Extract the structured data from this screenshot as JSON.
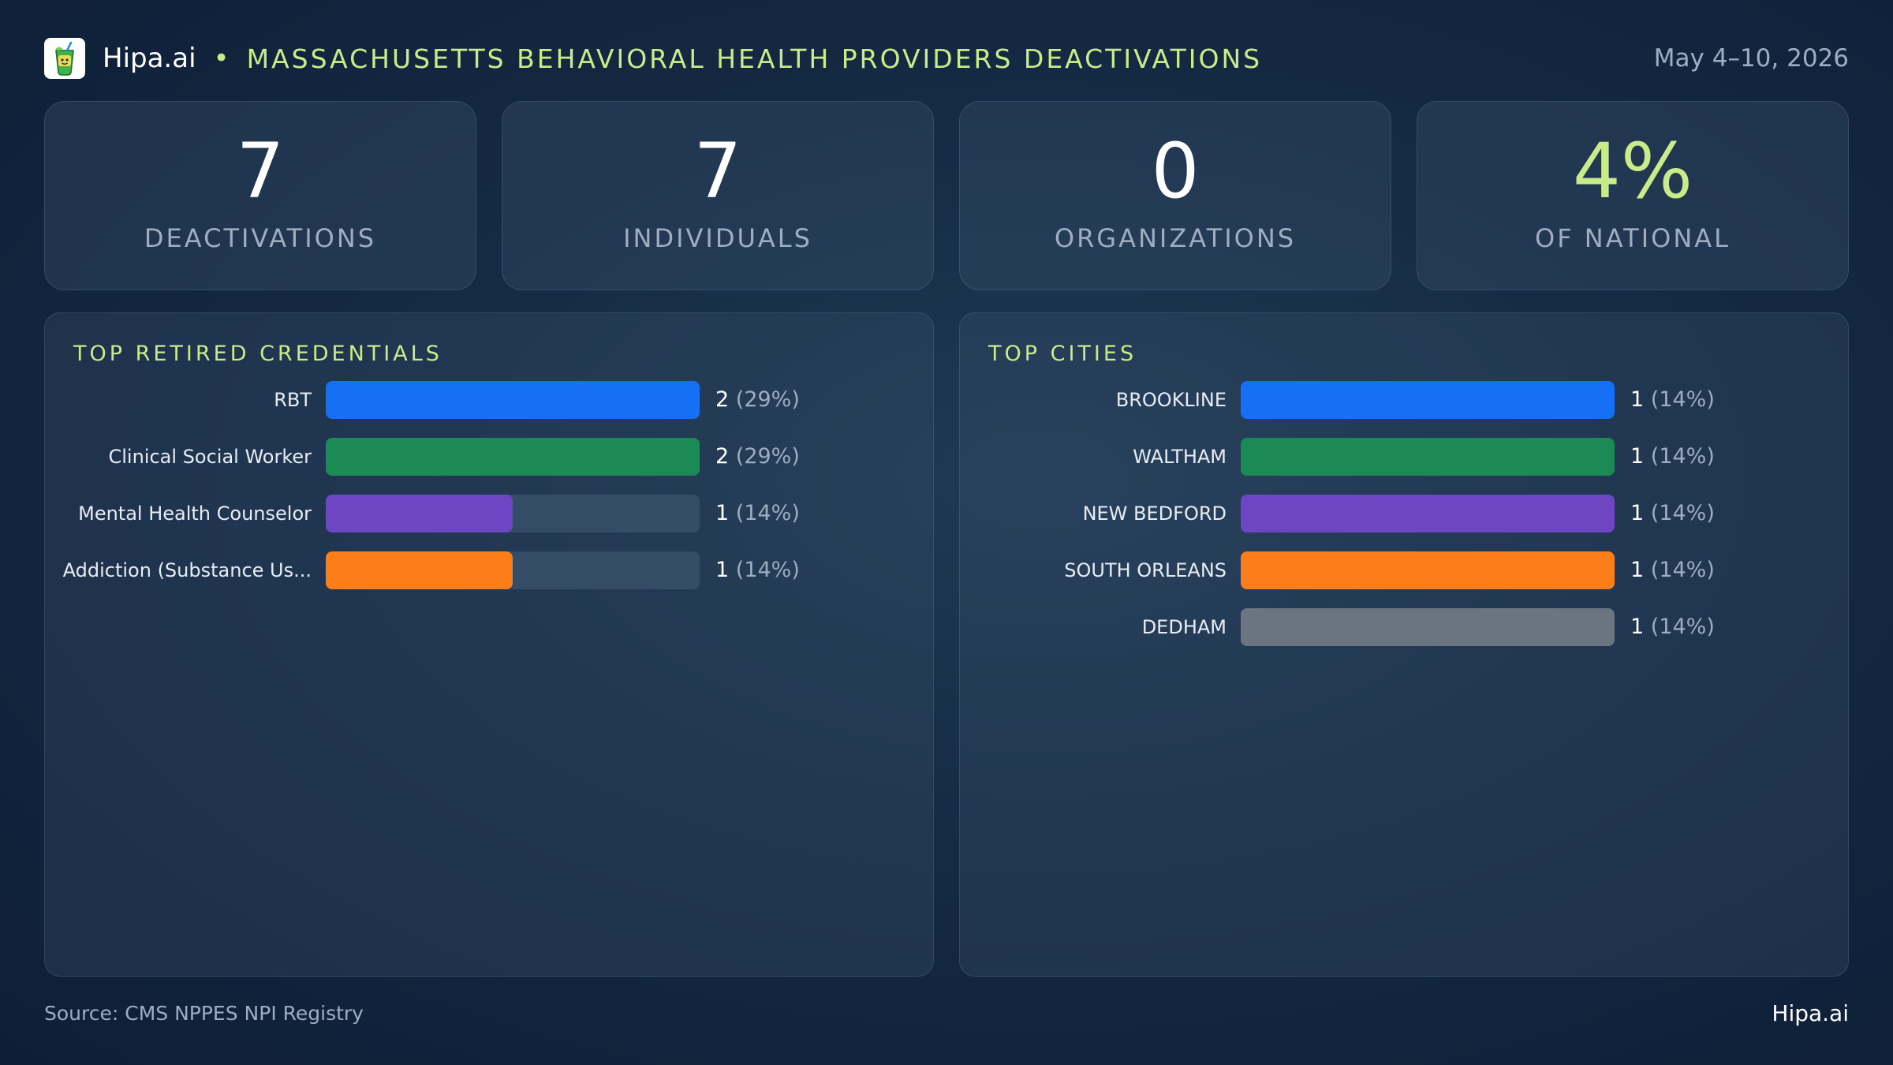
{
  "header": {
    "brand": "Hipa.ai",
    "separator": "•",
    "title": "MASSACHUSETTS BEHAVIORAL HEALTH PROVIDERS DEACTIVATIONS",
    "date_range": "May 4–10, 2026",
    "logo_icon": "cocktail-cup-icon"
  },
  "kpis": [
    {
      "value": "7",
      "label": "DEACTIVATIONS"
    },
    {
      "value": "7",
      "label": "INDIVIDUALS"
    },
    {
      "value": "0",
      "label": "ORGANIZATIONS"
    },
    {
      "value": "4%",
      "label": "OF NATIONAL"
    }
  ],
  "colors": {
    "accent": "#c9ec8a",
    "blue": "#1570f5",
    "green": "#1b8a55",
    "purple": "#6e45c2",
    "orange": "#fb7e18",
    "gray": "#6b7481"
  },
  "chart_data": [
    {
      "type": "bar",
      "orientation": "horizontal",
      "title": "TOP RETIRED CREDENTIALS",
      "categories": [
        "RBT",
        "Clinical Social Worker",
        "Mental Health Counselor",
        "Addiction (Substance Us..."
      ],
      "values": [
        2,
        2,
        1,
        1
      ],
      "percent_labels": [
        "(29%)",
        "(29%)",
        "(14%)",
        "(14%)"
      ],
      "colors": [
        "#1570f5",
        "#1b8a55",
        "#6e45c2",
        "#fb7e18"
      ],
      "xlim": [
        0,
        2
      ]
    },
    {
      "type": "bar",
      "orientation": "horizontal",
      "title": "TOP CITIES",
      "categories": [
        "BROOKLINE",
        "WALTHAM",
        "NEW BEDFORD",
        "SOUTH ORLEANS",
        "DEDHAM"
      ],
      "values": [
        1,
        1,
        1,
        1,
        1
      ],
      "percent_labels": [
        "(14%)",
        "(14%)",
        "(14%)",
        "(14%)",
        "(14%)"
      ],
      "colors": [
        "#1570f5",
        "#1b8a55",
        "#6e45c2",
        "#fb7e18",
        "#6b7481"
      ],
      "xlim": [
        0,
        1
      ]
    }
  ],
  "footer": {
    "source": "Source: CMS NPPES NPI Registry",
    "brand": "Hipa.ai"
  }
}
